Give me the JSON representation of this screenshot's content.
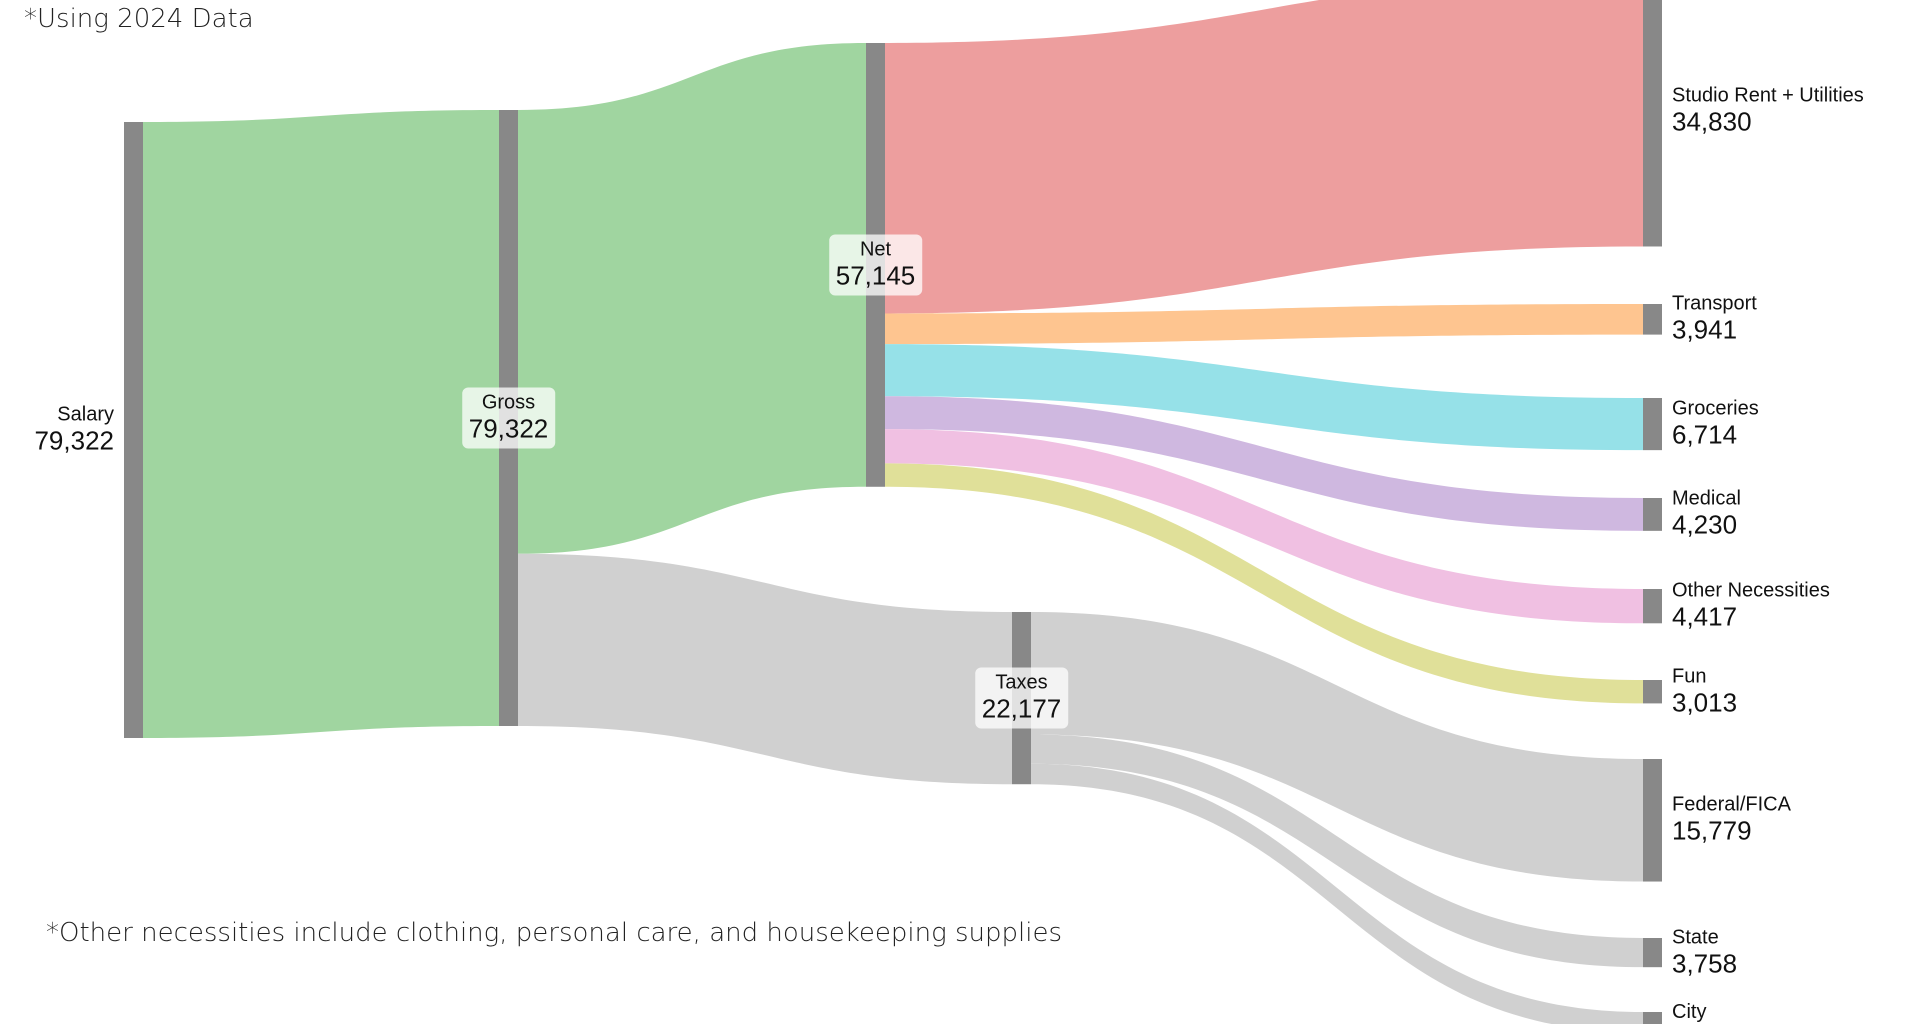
{
  "notes": {
    "top": "*Using 2024 Data",
    "bottom": "*Other necessities include clothing, personal care, and housekeeping supplies"
  },
  "chart_data": {
    "type": "sankey",
    "node_color": "#888888",
    "nodes": [
      {
        "id": "salary",
        "name": "Salary",
        "value_label": "79,322"
      },
      {
        "id": "gross",
        "name": "Gross",
        "value_label": "79,322"
      },
      {
        "id": "net",
        "name": "Net",
        "value_label": "57,145"
      },
      {
        "id": "taxes",
        "name": "Taxes",
        "value_label": "22,177"
      },
      {
        "id": "studio",
        "name": "Studio Rent + Utilities",
        "value_label": "34,830"
      },
      {
        "id": "transport",
        "name": "Transport",
        "value_label": "3,941"
      },
      {
        "id": "groceries",
        "name": "Groceries",
        "value_label": "6,714"
      },
      {
        "id": "medical",
        "name": "Medical",
        "value_label": "4,230"
      },
      {
        "id": "other",
        "name": "Other Necessities",
        "value_label": "4,417"
      },
      {
        "id": "fun",
        "name": "Fun",
        "value_label": "3,013"
      },
      {
        "id": "federal",
        "name": "Federal/FICA",
        "value_label": "15,779"
      },
      {
        "id": "state",
        "name": "State",
        "value_label": "3,758"
      },
      {
        "id": "city",
        "name": "City",
        "value_label": ""
      }
    ],
    "links": [
      {
        "source": "salary",
        "target": "gross",
        "value": 79322,
        "color": "#a0d5a0"
      },
      {
        "source": "gross",
        "target": "net",
        "value": 57145,
        "color": "#a0d5a0"
      },
      {
        "source": "gross",
        "target": "taxes",
        "value": 22177,
        "color": "#d0d0d0"
      },
      {
        "source": "net",
        "target": "studio",
        "value": 34830,
        "color": "#ed9e9e"
      },
      {
        "source": "net",
        "target": "transport",
        "value": 3941,
        "color": "#fec590"
      },
      {
        "source": "net",
        "target": "groceries",
        "value": 6714,
        "color": "#96e1e8"
      },
      {
        "source": "net",
        "target": "medical",
        "value": 4230,
        "color": "#cfb8e0"
      },
      {
        "source": "net",
        "target": "other",
        "value": 4417,
        "color": "#f0c0e2"
      },
      {
        "source": "net",
        "target": "fun",
        "value": 3013,
        "color": "#e0e099"
      },
      {
        "source": "taxes",
        "target": "federal",
        "value": 15779,
        "color": "#d0d0d0"
      },
      {
        "source": "taxes",
        "target": "state",
        "value": 3758,
        "color": "#d0d0d0"
      },
      {
        "source": "taxes",
        "target": "city",
        "value": 2640,
        "color": "#d0d0d0"
      }
    ]
  }
}
